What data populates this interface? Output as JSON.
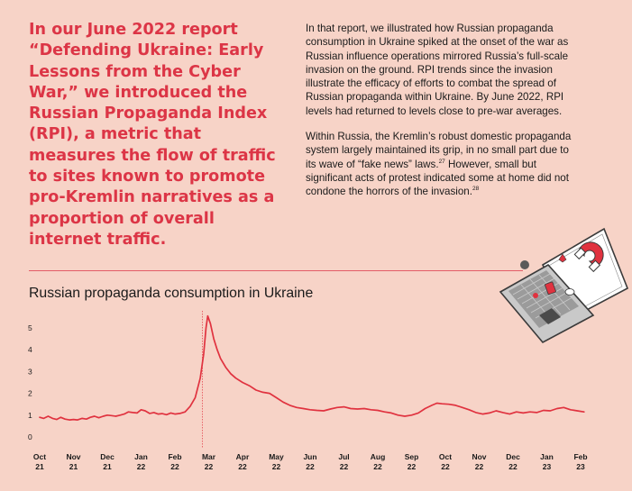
{
  "pull_quote": "In our June 2022 report “Defending Ukraine: Early Lessons from the Cyber War,” we introduced the Russian Propaganda Index (RPI), a metric that measures the flow of traffic to sites known to promote pro-Kremlin narratives as a proportion of overall internet traffic.",
  "body": {
    "p1": "In that report, we illustrated how Russian propaganda consumption in Ukraine spiked at the onset of the war as Russian influence operations mirrored Russia’s full-scale invasion on the ground. RPI trends since the invasion illustrate the efficacy of efforts to combat the spread of Russian propaganda within Ukraine. By June 2022, RPI levels had returned to levels close to pre-war averages.",
    "p2_text": "Within Russia, the Kremlin’s robust domestic propaganda system largely maintained its grip, in no small part due to its wave of “fake news” laws.",
    "p2_ref1": "27",
    "p2_text2": " However, small but significant acts of protest indicated some at home did not condone the horrors of the invasion.",
    "p2_ref2": "28"
  },
  "colors": {
    "background": "#f7d3c7",
    "accent": "#dc3546",
    "line": "#e0323f",
    "divider": "#e35c67"
  },
  "illustration": {
    "icon": "laptop-magnet-icon"
  },
  "chart_data": {
    "type": "line",
    "title": "Russian propaganda consumption in Ukraine",
    "xlabel": "",
    "ylabel": "",
    "ylim": [
      0,
      5.5
    ],
    "yticks": [
      0,
      1,
      2,
      3,
      4,
      5
    ],
    "grid": false,
    "legend": "none",
    "x_ticks": [
      {
        "month": "Oct",
        "year": "21",
        "t": 0
      },
      {
        "month": "Nov",
        "year": "21",
        "t": 1
      },
      {
        "month": "Dec",
        "year": "21",
        "t": 2
      },
      {
        "month": "Jan",
        "year": "22",
        "t": 3
      },
      {
        "month": "Feb",
        "year": "22",
        "t": 4
      },
      {
        "month": "Mar",
        "year": "22",
        "t": 5
      },
      {
        "month": "Apr",
        "year": "22",
        "t": 6
      },
      {
        "month": "May",
        "year": "22",
        "t": 7
      },
      {
        "month": "Jun",
        "year": "22",
        "t": 8
      },
      {
        "month": "Jul",
        "year": "22",
        "t": 9
      },
      {
        "month": "Aug",
        "year": "22",
        "t": 10
      },
      {
        "month": "Sep",
        "year": "22",
        "t": 11
      },
      {
        "month": "Oct",
        "year": "22",
        "t": 12
      },
      {
        "month": "Nov",
        "year": "22",
        "t": 13
      },
      {
        "month": "Dec",
        "year": "22",
        "t": 14
      },
      {
        "month": "Jan",
        "year": "23",
        "t": 15
      },
      {
        "month": "Feb",
        "year": "23",
        "t": 16
      }
    ],
    "marker_line_t": 5,
    "series": [
      {
        "points": [
          [
            0,
            0.9
          ],
          [
            0.12,
            0.85
          ],
          [
            0.25,
            0.95
          ],
          [
            0.38,
            0.85
          ],
          [
            0.5,
            0.8
          ],
          [
            0.62,
            0.9
          ],
          [
            0.75,
            0.82
          ],
          [
            0.88,
            0.78
          ],
          [
            1.0,
            0.8
          ],
          [
            1.12,
            0.78
          ],
          [
            1.25,
            0.85
          ],
          [
            1.38,
            0.82
          ],
          [
            1.5,
            0.9
          ],
          [
            1.62,
            0.95
          ],
          [
            1.75,
            0.88
          ],
          [
            1.88,
            0.95
          ],
          [
            2.0,
            1.0
          ],
          [
            2.12,
            0.98
          ],
          [
            2.25,
            0.95
          ],
          [
            2.38,
            1.0
          ],
          [
            2.5,
            1.05
          ],
          [
            2.62,
            1.15
          ],
          [
            2.75,
            1.12
          ],
          [
            2.88,
            1.1
          ],
          [
            3.0,
            1.25
          ],
          [
            3.12,
            1.2
          ],
          [
            3.25,
            1.08
          ],
          [
            3.38,
            1.12
          ],
          [
            3.5,
            1.05
          ],
          [
            3.62,
            1.07
          ],
          [
            3.75,
            1.02
          ],
          [
            3.88,
            1.1
          ],
          [
            4.0,
            1.05
          ],
          [
            4.15,
            1.08
          ],
          [
            4.3,
            1.15
          ],
          [
            4.45,
            1.4
          ],
          [
            4.6,
            1.8
          ],
          [
            4.75,
            2.7
          ],
          [
            4.85,
            3.8
          ],
          [
            4.92,
            5.0
          ],
          [
            4.97,
            5.55
          ],
          [
            5.05,
            5.2
          ],
          [
            5.15,
            4.5
          ],
          [
            5.25,
            4.0
          ],
          [
            5.35,
            3.6
          ],
          [
            5.5,
            3.2
          ],
          [
            5.65,
            2.9
          ],
          [
            5.8,
            2.7
          ],
          [
            6.0,
            2.5
          ],
          [
            6.2,
            2.35
          ],
          [
            6.4,
            2.15
          ],
          [
            6.6,
            2.05
          ],
          [
            6.8,
            2.0
          ],
          [
            7.0,
            1.8
          ],
          [
            7.2,
            1.6
          ],
          [
            7.4,
            1.45
          ],
          [
            7.6,
            1.35
          ],
          [
            7.8,
            1.3
          ],
          [
            8.0,
            1.25
          ],
          [
            8.2,
            1.22
          ],
          [
            8.4,
            1.2
          ],
          [
            8.6,
            1.28
          ],
          [
            8.8,
            1.35
          ],
          [
            9.0,
            1.38
          ],
          [
            9.2,
            1.3
          ],
          [
            9.4,
            1.28
          ],
          [
            9.6,
            1.3
          ],
          [
            9.8,
            1.25
          ],
          [
            10.0,
            1.22
          ],
          [
            10.2,
            1.15
          ],
          [
            10.4,
            1.1
          ],
          [
            10.6,
            1.0
          ],
          [
            10.8,
            0.95
          ],
          [
            11.0,
            1.0
          ],
          [
            11.2,
            1.1
          ],
          [
            11.4,
            1.3
          ],
          [
            11.6,
            1.45
          ],
          [
            11.75,
            1.55
          ],
          [
            11.9,
            1.52
          ],
          [
            12.1,
            1.5
          ],
          [
            12.3,
            1.45
          ],
          [
            12.5,
            1.35
          ],
          [
            12.7,
            1.25
          ],
          [
            12.9,
            1.12
          ],
          [
            13.1,
            1.05
          ],
          [
            13.3,
            1.1
          ],
          [
            13.5,
            1.2
          ],
          [
            13.7,
            1.12
          ],
          [
            13.9,
            1.05
          ],
          [
            14.1,
            1.15
          ],
          [
            14.3,
            1.1
          ],
          [
            14.5,
            1.15
          ],
          [
            14.7,
            1.12
          ],
          [
            14.9,
            1.22
          ],
          [
            15.1,
            1.2
          ],
          [
            15.3,
            1.3
          ],
          [
            15.5,
            1.35
          ],
          [
            15.7,
            1.25
          ],
          [
            15.9,
            1.2
          ],
          [
            16.1,
            1.15
          ]
        ]
      }
    ]
  }
}
